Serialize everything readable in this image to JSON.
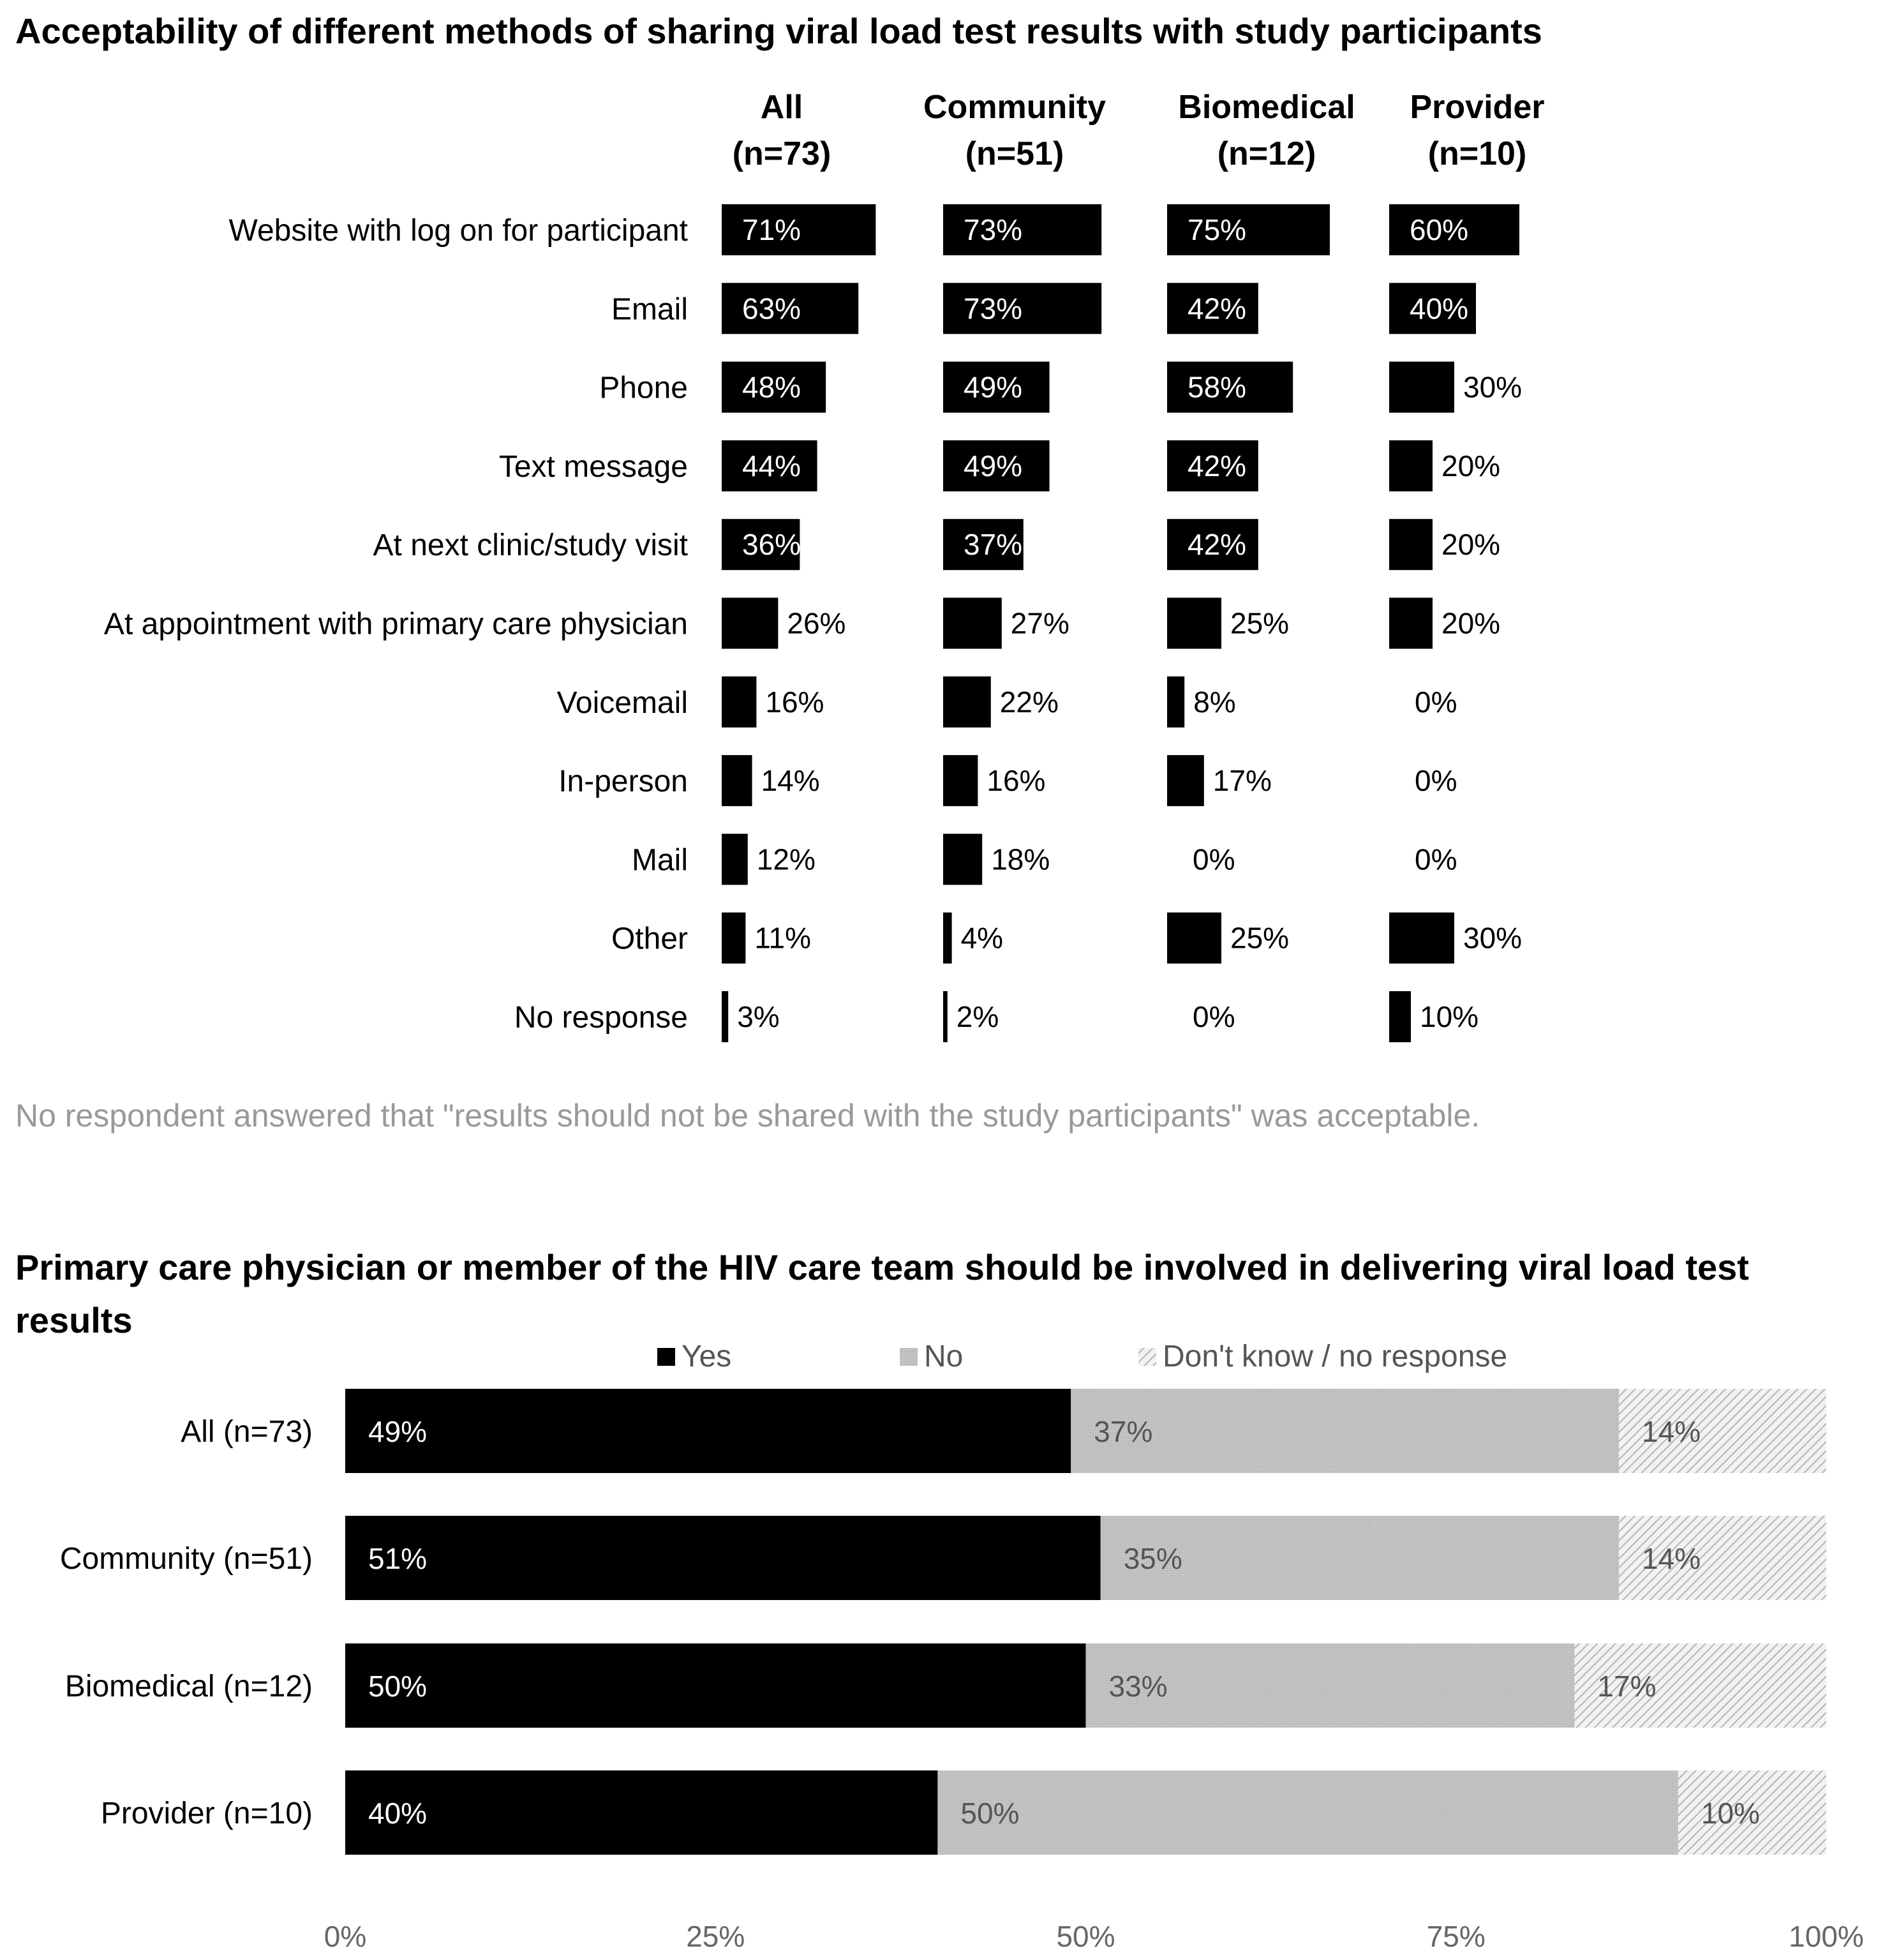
{
  "chart_data": [
    {
      "type": "bar",
      "title": "Acceptability of different methods of sharing viral load test results with study participants",
      "note": "No respondent answered that \"results should not be shared with the study participants\" was acceptable.",
      "categories": [
        "Website with log on for participant",
        "Email",
        "Phone",
        "Text message",
        "At next clinic/study visit",
        "At appointment with primary care physician",
        "Voicemail",
        "In-person",
        "Mail",
        "Other",
        "No response"
      ],
      "series": [
        {
          "name": "All",
          "n_label": "(n=73)",
          "values": [
            71,
            63,
            48,
            44,
            36,
            26,
            16,
            14,
            12,
            11,
            3
          ]
        },
        {
          "name": "Community",
          "n_label": "(n=51)",
          "values": [
            73,
            73,
            49,
            49,
            37,
            27,
            22,
            16,
            18,
            4,
            2
          ]
        },
        {
          "name": "Biomedical",
          "n_label": "(n=12)",
          "values": [
            75,
            42,
            58,
            42,
            42,
            25,
            8,
            17,
            0,
            25,
            0
          ]
        },
        {
          "name": "Provider",
          "n_label": "(n=10)",
          "values": [
            60,
            40,
            30,
            20,
            20,
            20,
            0,
            0,
            0,
            30,
            10
          ]
        }
      ],
      "unit": "%",
      "color": "#000000"
    },
    {
      "type": "stacked-bar",
      "title_lines": [
        "Primary care physician or member of the HIV care team should be involved in delivering viral load test",
        "results"
      ],
      "categories": [
        "All (n=73)",
        "Community (n=51)",
        "Biomedical (n=12)",
        "Provider (n=10)"
      ],
      "series": [
        {
          "name": "Yes",
          "color": "#000000",
          "values": [
            49,
            51,
            50,
            40
          ]
        },
        {
          "name": "No",
          "color": "#c0c0c0",
          "values": [
            37,
            35,
            33,
            50
          ]
        },
        {
          "name": "Don't know / no response",
          "color": "hatched",
          "values": [
            14,
            14,
            17,
            10
          ]
        }
      ],
      "xlim": [
        0,
        100
      ],
      "xticks": [
        "0%",
        "25%",
        "50%",
        "75%",
        "100%"
      ],
      "unit": "%"
    }
  ]
}
